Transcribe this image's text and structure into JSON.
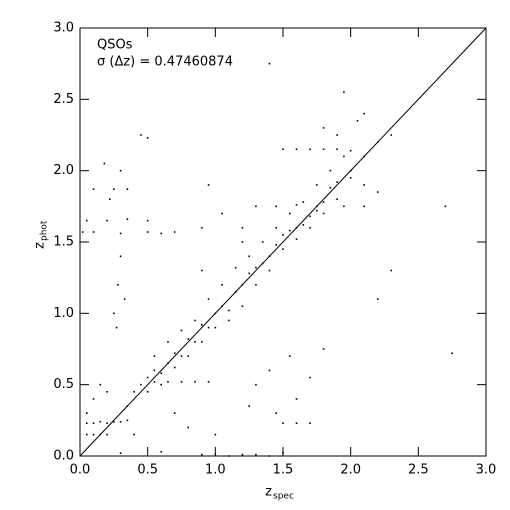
{
  "chart_data": {
    "type": "scatter",
    "xlabel": {
      "main": "z",
      "sub": "spec"
    },
    "ylabel": {
      "main": "z",
      "sub": "phot"
    },
    "annotations": [
      "QSOs",
      "σ (Δz) = 0.47460874"
    ],
    "identity_line": true,
    "color": "#000000",
    "xlim": [
      0,
      3
    ],
    "ylim": [
      0,
      3
    ],
    "xticks": [
      {
        "value": 0,
        "label": "0.0"
      },
      0.5,
      {
        "value": 1,
        "label": "1.0"
      },
      1.5,
      {
        "value": 2,
        "label": "2.0"
      },
      2.5,
      {
        "value": 3,
        "label": "3.0"
      }
    ],
    "yticks": [
      {
        "value": 0,
        "label": "0.0"
      },
      0.5,
      {
        "value": 1,
        "label": "1.0"
      },
      1.5,
      {
        "value": 2,
        "label": "2.0"
      },
      2.5,
      {
        "value": 3,
        "label": "3.0"
      }
    ],
    "x": [
      0.35,
      0.4,
      0.45,
      0.5,
      0.55,
      0.6,
      0.65,
      0.7,
      0.75,
      0.8,
      0.85,
      0.9,
      0.95,
      1.0,
      1.05,
      1.1,
      1.15,
      1.2,
      1.25,
      1.3,
      1.35,
      1.4,
      1.45,
      1.5,
      1.55,
      1.6,
      1.65,
      1.7,
      1.75,
      1.8,
      1.85,
      1.9,
      2.0,
      2.1,
      2.2,
      0.5,
      0.6,
      0.7,
      0.8,
      0.9,
      1.0,
      1.1,
      1.2,
      1.3,
      1.4,
      1.5,
      1.6,
      1.7,
      1.8,
      1.9,
      0.55,
      0.65,
      0.75,
      0.85,
      0.95,
      1.05,
      1.15,
      1.25,
      1.35,
      1.45,
      1.55,
      1.65,
      1.75,
      1.85,
      1.95,
      0.05,
      0.1,
      0.15,
      0.2,
      0.25,
      0.3,
      0.35,
      0.05,
      0.1,
      0.15,
      0.2,
      0.9,
      1.0,
      1.1,
      1.2,
      1.3,
      1.4,
      1.5,
      0.3,
      0.6,
      1.5,
      1.6,
      1.7,
      0.55,
      0.65,
      0.75,
      0.85,
      0.95,
      0.02,
      0.1,
      0.3,
      0.5,
      0.6,
      0.7,
      0.05,
      0.2,
      0.35,
      0.5,
      0.1,
      0.25,
      0.35,
      1.5,
      1.6,
      1.7,
      1.8,
      1.9,
      2.0,
      1.3,
      1.45,
      1.6,
      1.75,
      1.95,
      2.1,
      1.8,
      1.9,
      2.05,
      2.1,
      2.3,
      2.0,
      2.1,
      2.2,
      0.25,
      0.28,
      0.3,
      0.22,
      0.3,
      0.18,
      0.33,
      0.27,
      1.3,
      1.4,
      1.55,
      1.7,
      1.6,
      1.45,
      1.25,
      1.8,
      0.5,
      0.45,
      1.4,
      1.95,
      2.75,
      2.7,
      0.95,
      1.05,
      1.2,
      0.9,
      2.3,
      2.2,
      0.1,
      0.05,
      0.15,
      0.2,
      0.4,
      0.7,
      0.8,
      1.0,
      0.9,
      1.2
    ],
    "y": [
      0.35,
      0.45,
      0.5,
      0.55,
      0.6,
      0.58,
      0.65,
      0.72,
      0.7,
      0.82,
      0.8,
      0.92,
      0.9,
      1.0,
      1.05,
      1.02,
      1.15,
      1.2,
      1.28,
      1.32,
      1.35,
      1.4,
      1.48,
      1.55,
      1.58,
      1.6,
      1.62,
      1.68,
      1.72,
      1.78,
      1.88,
      1.92,
      2.0,
      2.1,
      2.2,
      0.45,
      0.5,
      0.62,
      0.7,
      0.8,
      0.9,
      0.95,
      1.05,
      1.2,
      1.3,
      1.45,
      1.52,
      1.6,
      1.7,
      1.8,
      0.7,
      0.8,
      0.88,
      0.95,
      1.1,
      1.2,
      1.32,
      1.4,
      1.5,
      1.6,
      1.7,
      1.78,
      1.9,
      2.0,
      2.1,
      0.23,
      0.23,
      0.24,
      0.23,
      0.24,
      0.24,
      0.25,
      0.15,
      0.15,
      0.15,
      0.15,
      0.01,
      0.01,
      0.0,
      0.01,
      0.01,
      0.0,
      0.02,
      0.02,
      0.03,
      0.23,
      0.23,
      0.23,
      0.52,
      0.52,
      0.52,
      0.52,
      0.52,
      1.57,
      1.57,
      1.56,
      1.57,
      1.56,
      1.57,
      1.65,
      1.65,
      1.66,
      1.65,
      1.87,
      1.87,
      1.87,
      2.15,
      2.15,
      2.15,
      2.15,
      2.15,
      2.14,
      1.75,
      1.75,
      1.76,
      1.75,
      1.75,
      1.75,
      2.3,
      2.25,
      2.35,
      2.4,
      2.25,
      1.95,
      1.9,
      1.85,
      1.0,
      1.2,
      1.4,
      1.8,
      2.0,
      2.05,
      1.1,
      0.9,
      0.5,
      0.6,
      0.7,
      0.55,
      0.4,
      0.3,
      0.35,
      0.75,
      2.23,
      2.25,
      2.75,
      2.55,
      0.72,
      1.75,
      1.9,
      1.7,
      1.5,
      1.3,
      1.3,
      1.1,
      0.4,
      0.3,
      0.5,
      0.45,
      0.15,
      0.3,
      0.2,
      0.15,
      1.6,
      1.6
    ]
  }
}
